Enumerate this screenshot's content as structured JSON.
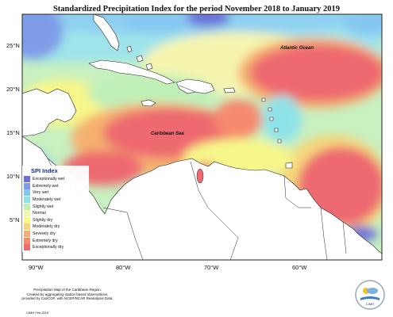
{
  "title": "Standardized Precipitation Index for the period November 2018 to January 2019",
  "latitude_labels": [
    "25°N",
    "20°N",
    "15°N",
    "10°N",
    "5°N"
  ],
  "longitude_labels": [
    "90°W",
    "80°W",
    "70°W",
    "60°W"
  ],
  "ocean_labels": {
    "atlantic": "Atlantic Ocean",
    "caribbean": "Caribbean Sea"
  },
  "legend": {
    "title": "SPI Index",
    "items": [
      {
        "label": "Exceptionally wet",
        "color": "#6b6fd8"
      },
      {
        "label": "Extremely wet",
        "color": "#7f9ce8"
      },
      {
        "label": "Very wet",
        "color": "#86c7f2"
      },
      {
        "label": "Moderately wet",
        "color": "#8fe3e8"
      },
      {
        "label": "Slightly wet",
        "color": "#bff0b8"
      },
      {
        "label": "Normal",
        "color": "#f5f5b0"
      },
      {
        "label": "Slightly dry",
        "color": "#f7f78a"
      },
      {
        "label": "Moderately dry",
        "color": "#f5d67c"
      },
      {
        "label": "Severely dry",
        "color": "#f5b070"
      },
      {
        "label": "Extremely dry",
        "color": "#f58a6e"
      },
      {
        "label": "Exceptionally dry",
        "color": "#ee6a6f"
      }
    ]
  },
  "footer": {
    "line1": "Precipitation Map of the Caribbean Region.",
    "line2": "Created by aggregating station based observations,",
    "line3": "provided by CariCOF, with NCEP/NCAR Reanalysis Data.",
    "credit": "CIMH Feb.2019"
  },
  "logo_text": "CIMH"
}
